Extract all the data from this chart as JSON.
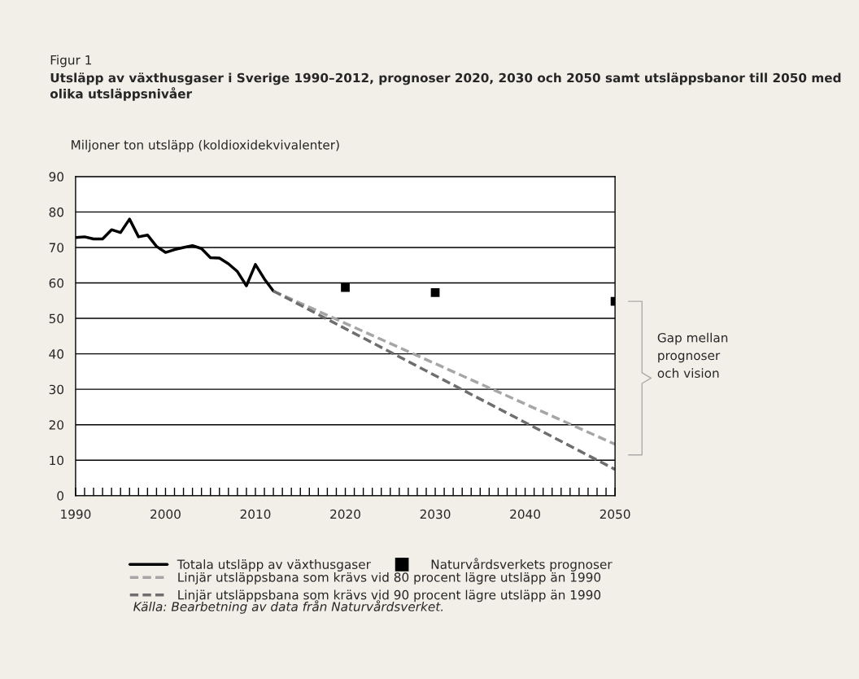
{
  "chart_data": {
    "type": "line",
    "title": "Figur 1",
    "subtitle": "Utsläpp av växthusgaser i Sverige 1990–2012, prognoser 2020, 2030 och 2050 samt utsläppsbanor till 2050 med olika utsläppsnivåer",
    "ylabel": "Miljoner ton utsläpp (koldioxidekvivalenter)",
    "series": [
      {
        "name": "Totala utsläpp av växthusgaser",
        "color": "#000000",
        "line_style": "solid",
        "x": [
          1990,
          1991,
          1992,
          1993,
          1994,
          1995,
          1996,
          1997,
          1998,
          1999,
          2000,
          2001,
          2002,
          2003,
          2004,
          2005,
          2006,
          2007,
          2008,
          2009,
          2010,
          2011,
          2012
        ],
        "values": [
          72.8,
          73.0,
          72.4,
          72.4,
          75.0,
          74.2,
          78.0,
          73.0,
          73.5,
          70.3,
          68.6,
          69.4,
          70.0,
          70.5,
          69.7,
          67.1,
          67.0,
          65.4,
          63.2,
          59.2,
          65.2,
          61.1,
          57.7
        ]
      },
      {
        "name": "Naturvårdsverkets prognoser",
        "color": "#000000",
        "type": "scatter",
        "marker": "square",
        "x": [
          2020,
          2030,
          2050
        ],
        "values": [
          58.7,
          57.3,
          54.8
        ]
      },
      {
        "name": "Linjär utsläppsbana som krävs vid 80 procent lägre utsläpp än 1990",
        "color": "#a6a6a6",
        "line_style": "dashed",
        "x": [
          2012,
          2050
        ],
        "values": [
          57.7,
          14.5
        ]
      },
      {
        "name": "Linjär utsläppsbana som krävs vid 90 procent lägre utsläpp än 1990",
        "color": "#6e6e6e",
        "line_style": "dashed",
        "x": [
          2012,
          2050
        ],
        "values": [
          57.7,
          7.4
        ]
      }
    ],
    "xlim": [
      1990,
      2050
    ],
    "xticks": [
      1990,
      {
        "value": 1991,
        "label": null
      },
      {
        "value": 1992,
        "label": null
      },
      {
        "value": 1993,
        "label": null
      },
      {
        "value": 1994,
        "label": null
      },
      {
        "value": 1995,
        "label": null
      },
      {
        "value": 1996,
        "label": null
      },
      {
        "value": 1997,
        "label": null
      },
      {
        "value": 1998,
        "label": null
      },
      {
        "value": 1999,
        "label": null
      },
      2000,
      {
        "value": 2001,
        "label": null
      },
      {
        "value": 2002,
        "label": null
      },
      {
        "value": 2003,
        "label": null
      },
      {
        "value": 2004,
        "label": null
      },
      {
        "value": 2005,
        "label": null
      },
      {
        "value": 2006,
        "label": null
      },
      {
        "value": 2007,
        "label": null
      },
      {
        "value": 2008,
        "label": null
      },
      {
        "value": 2009,
        "label": null
      },
      2010,
      {
        "value": 2011,
        "label": null
      },
      {
        "value": 2012,
        "label": null
      },
      {
        "value": 2013,
        "label": null
      },
      {
        "value": 2014,
        "label": null
      },
      {
        "value": 2015,
        "label": null
      },
      {
        "value": 2016,
        "label": null
      },
      {
        "value": 2017,
        "label": null
      },
      {
        "value": 2018,
        "label": null
      },
      {
        "value": 2019,
        "label": null
      },
      2020,
      {
        "value": 2021,
        "label": null
      },
      {
        "value": 2022,
        "label": null
      },
      {
        "value": 2023,
        "label": null
      },
      {
        "value": 2024,
        "label": null
      },
      {
        "value": 2025,
        "label": null
      },
      {
        "value": 2026,
        "label": null
      },
      {
        "value": 2027,
        "label": null
      },
      {
        "value": 2028,
        "label": null
      },
      {
        "value": 2029,
        "label": null
      },
      2030,
      {
        "value": 2031,
        "label": null
      },
      {
        "value": 2032,
        "label": null
      },
      {
        "value": 2033,
        "label": null
      },
      {
        "value": 2034,
        "label": null
      },
      {
        "value": 2035,
        "label": null
      },
      {
        "value": 2036,
        "label": null
      },
      {
        "value": 2037,
        "label": null
      },
      {
        "value": 2038,
        "label": null
      },
      {
        "value": 2039,
        "label": null
      },
      2040,
      {
        "value": 2041,
        "label": null
      },
      {
        "value": 2042,
        "label": null
      },
      {
        "value": 2043,
        "label": null
      },
      {
        "value": 2044,
        "label": null
      },
      {
        "value": 2045,
        "label": null
      },
      {
        "value": 2046,
        "label": null
      },
      {
        "value": 2047,
        "label": null
      },
      {
        "value": 2048,
        "label": null
      },
      {
        "value": 2049,
        "label": null
      },
      2050
    ],
    "ylim": [
      0,
      90
    ],
    "yticks": [
      0,
      10,
      20,
      30,
      40,
      50,
      60,
      70,
      80,
      90
    ],
    "grid": "y",
    "legend": "bottom",
    "annotations": [
      "Gap mellan\nprognoser\noch vision",
      "Källa: Bearbetning av data från Naturvårdsverket."
    ]
  }
}
